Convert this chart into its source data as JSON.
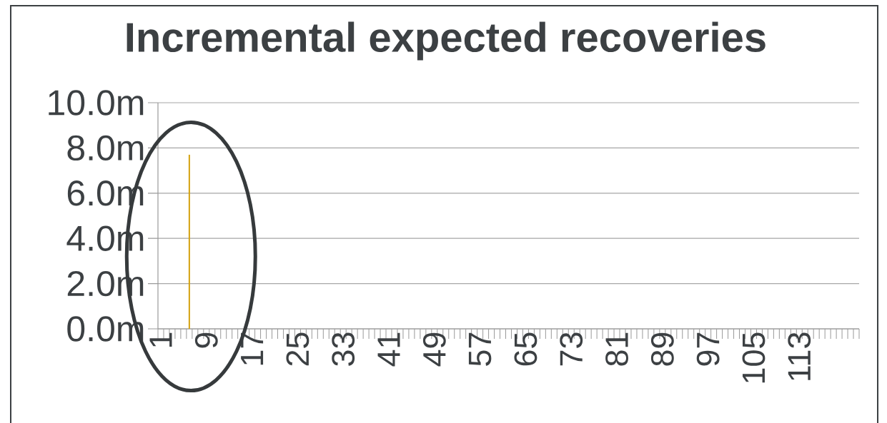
{
  "chart_data": {
    "type": "bar",
    "title": "Incremental expected recoveries",
    "categories": [
      "1",
      null,
      null,
      null,
      null,
      null,
      null,
      null,
      "9",
      null,
      null,
      null,
      null,
      null,
      null,
      null,
      "17",
      null,
      null,
      null,
      null,
      null,
      null,
      null,
      "25",
      null,
      null,
      null,
      null,
      null,
      null,
      null,
      "33",
      null,
      null,
      null,
      null,
      null,
      null,
      null,
      "41",
      null,
      null,
      null,
      null,
      null,
      null,
      null,
      "49",
      null,
      null,
      null,
      null,
      null,
      null,
      null,
      "57",
      null,
      null,
      null,
      null,
      null,
      null,
      null,
      "65",
      null,
      null,
      null,
      null,
      null,
      null,
      null,
      "73",
      null,
      null,
      null,
      null,
      null,
      null,
      null,
      "81",
      null,
      null,
      null,
      null,
      null,
      null,
      null,
      "89",
      null,
      null,
      null,
      null,
      null,
      null,
      null,
      "97",
      null,
      null,
      null,
      null,
      null,
      null,
      null,
      "105",
      null,
      null,
      null,
      null,
      null,
      null,
      null,
      "113",
      null,
      null,
      null,
      null,
      null,
      null,
      null,
      null,
      null,
      null
    ],
    "values": [
      0,
      0,
      0,
      0,
      0,
      7.7,
      0,
      0,
      0,
      0,
      0,
      0,
      0,
      0,
      0,
      0,
      0,
      0,
      0,
      0,
      0,
      0,
      0,
      0,
      0,
      0,
      0,
      0,
      0,
      0,
      0,
      0,
      0,
      0,
      0,
      0,
      0,
      0,
      0,
      0,
      0,
      0,
      0,
      0,
      0,
      0,
      0,
      0,
      0,
      0,
      0,
      0,
      0,
      0,
      0,
      0,
      0,
      0,
      0,
      0,
      0,
      0,
      0,
      0,
      0,
      0,
      0,
      0,
      0,
      0,
      0,
      0,
      0,
      0,
      0,
      0,
      0,
      0,
      0,
      0,
      0,
      0,
      0,
      0,
      0,
      0,
      0,
      0,
      0,
      0,
      0,
      0,
      0,
      0,
      0,
      0,
      0,
      0,
      0,
      0,
      0,
      0,
      0,
      0,
      0,
      0,
      0,
      0,
      0,
      0,
      0,
      0,
      0,
      0,
      0,
      0,
      0,
      0,
      0,
      0,
      0,
      0,
      0
    ],
    "color": "#d4a20f",
    "ylim": [
      0,
      10
    ],
    "yticks": [
      {
        "value": 0,
        "label": "0.0m"
      },
      {
        "value": 2,
        "label": "2.0m"
      },
      {
        "value": 4,
        "label": "4.0m"
      },
      {
        "value": 6,
        "label": "6.0m"
      },
      {
        "value": 8,
        "label": "8.0m"
      },
      {
        "value": 10,
        "label": "10.0m"
      }
    ],
    "grid": "y"
  }
}
